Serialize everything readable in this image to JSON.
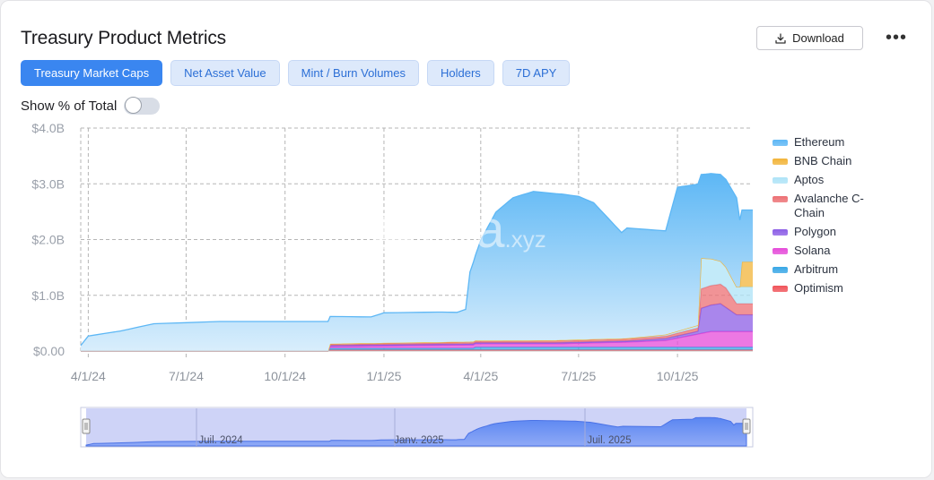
{
  "header": {
    "title": "Treasury Product Metrics",
    "download_label": "Download",
    "more_label": "•••"
  },
  "tabs": [
    {
      "label": "Treasury Market Caps",
      "active": true
    },
    {
      "label": "Net Asset Value",
      "active": false
    },
    {
      "label": "Mint / Burn Volumes",
      "active": false
    },
    {
      "label": "Holders",
      "active": false
    },
    {
      "label": "7D APY",
      "active": false
    }
  ],
  "toggle": {
    "label": "Show % of Total",
    "on": false
  },
  "watermark": "rwa.xyz",
  "navigator": {
    "labels": [
      "Juil. 2024",
      "Janv. 2025",
      "Juil. 2025"
    ]
  },
  "chart_data": {
    "type": "area",
    "stacked": true,
    "x_start": "2024-03-25",
    "x_end": "2025-12-10",
    "ylim": [
      0,
      4.0
    ],
    "yticks": [
      "$0.00",
      "$1.0B",
      "$2.0B",
      "$3.0B",
      "$4.0B"
    ],
    "xticks": [
      {
        "date": "2024-04-01",
        "label": "4/1/24"
      },
      {
        "date": "2024-07-01",
        "label": "7/1/24"
      },
      {
        "date": "2024-10-01",
        "label": "10/1/24"
      },
      {
        "date": "2025-01-01",
        "label": "1/1/25"
      },
      {
        "date": "2025-04-01",
        "label": "4/1/25"
      },
      {
        "date": "2025-07-01",
        "label": "7/1/25"
      },
      {
        "date": "2025-10-01",
        "label": "10/1/25"
      }
    ],
    "grid": true,
    "legend_position": "right",
    "unit": "$B",
    "series": [
      {
        "name": "Optimism",
        "color": "#f0545a",
        "points": [
          [
            "2024-03-25",
            0
          ],
          [
            "2024-11-10",
            0
          ],
          [
            "2024-11-12",
            0.02
          ],
          [
            "2025-12-10",
            0.02
          ]
        ]
      },
      {
        "name": "Arbitrum",
        "color": "#38a7e6",
        "points": [
          [
            "2024-03-25",
            0
          ],
          [
            "2024-11-10",
            0
          ],
          [
            "2024-11-12",
            0.03
          ],
          [
            "2025-03-25",
            0.03
          ],
          [
            "2025-03-27",
            0.05
          ],
          [
            "2025-12-10",
            0.05
          ]
        ]
      },
      {
        "name": "Solana",
        "color": "#e54bd9",
        "points": [
          [
            "2024-03-25",
            0
          ],
          [
            "2024-11-10",
            0
          ],
          [
            "2024-11-12",
            0.03
          ],
          [
            "2024-12-20",
            0.04
          ],
          [
            "2025-03-25",
            0.06
          ],
          [
            "2025-06-10",
            0.06
          ],
          [
            "2025-08-15",
            0.09
          ],
          [
            "2025-09-20",
            0.12
          ],
          [
            "2025-11-01",
            0.28
          ],
          [
            "2025-12-10",
            0.28
          ]
        ]
      },
      {
        "name": "Polygon",
        "color": "#8c5ee6",
        "points": [
          [
            "2024-03-25",
            0
          ],
          [
            "2024-11-10",
            0
          ],
          [
            "2024-11-12",
            0.02
          ],
          [
            "2025-08-15",
            0.02
          ],
          [
            "2025-10-20",
            0.05
          ],
          [
            "2025-10-23",
            0.45
          ],
          [
            "2025-11-10",
            0.5
          ],
          [
            "2025-11-25",
            0.3
          ],
          [
            "2025-12-10",
            0.3
          ]
        ]
      },
      {
        "name": "Avalanche C-Chain",
        "color": "#ec6f73",
        "points": [
          [
            "2024-03-25",
            0
          ],
          [
            "2024-11-10",
            0
          ],
          [
            "2024-11-12",
            0.02
          ],
          [
            "2025-09-20",
            0.04
          ],
          [
            "2025-10-20",
            0.06
          ],
          [
            "2025-10-23",
            0.35
          ],
          [
            "2025-11-15",
            0.35
          ],
          [
            "2025-11-25",
            0.2
          ],
          [
            "2025-12-10",
            0.2
          ]
        ]
      },
      {
        "name": "Aptos",
        "color": "#aee3f7",
        "points": [
          [
            "2024-03-25",
            0
          ],
          [
            "2024-11-10",
            0
          ],
          [
            "2024-11-12",
            0.01
          ],
          [
            "2025-08-15",
            0.01
          ],
          [
            "2025-09-20",
            0.03
          ],
          [
            "2025-10-20",
            0.05
          ],
          [
            "2025-10-23",
            0.55
          ],
          [
            "2025-11-25",
            0.3
          ],
          [
            "2025-12-10",
            0.3
          ]
        ]
      },
      {
        "name": "BNB Chain",
        "color": "#f2b43a",
        "points": [
          [
            "2024-03-25",
            0
          ],
          [
            "2025-11-28",
            0
          ],
          [
            "2025-11-30",
            0.45
          ],
          [
            "2025-12-10",
            0.45
          ]
        ]
      },
      {
        "name": "Ethereum",
        "color": "#5db7f5",
        "points": [
          [
            "2024-03-25",
            0.1
          ],
          [
            "2024-04-01",
            0.27
          ],
          [
            "2024-05-01",
            0.36
          ],
          [
            "2024-06-01",
            0.49
          ],
          [
            "2024-08-01",
            0.53
          ],
          [
            "2024-10-01",
            0.53
          ],
          [
            "2024-11-10",
            0.53
          ],
          [
            "2024-11-12",
            0.49
          ],
          [
            "2024-12-20",
            0.47
          ],
          [
            "2025-01-01",
            0.54
          ],
          [
            "2025-02-20",
            0.54
          ],
          [
            "2025-03-10",
            0.53
          ],
          [
            "2025-03-18",
            0.58
          ],
          [
            "2025-03-22",
            1.25
          ],
          [
            "2025-04-01",
            1.8
          ],
          [
            "2025-04-15",
            2.3
          ],
          [
            "2025-05-01",
            2.56
          ],
          [
            "2025-05-20",
            2.67
          ],
          [
            "2025-06-15",
            2.62
          ],
          [
            "2025-07-01",
            2.57
          ],
          [
            "2025-07-15",
            2.45
          ],
          [
            "2025-08-10",
            1.9
          ],
          [
            "2025-08-15",
            1.98
          ],
          [
            "2025-09-20",
            1.86
          ],
          [
            "2025-10-01",
            2.58
          ],
          [
            "2025-10-20",
            2.53
          ],
          [
            "2025-10-23",
            1.5
          ],
          [
            "2025-11-25",
            1.6
          ],
          [
            "2025-11-30",
            0.93
          ],
          [
            "2025-12-10",
            0.93
          ]
        ]
      }
    ]
  }
}
